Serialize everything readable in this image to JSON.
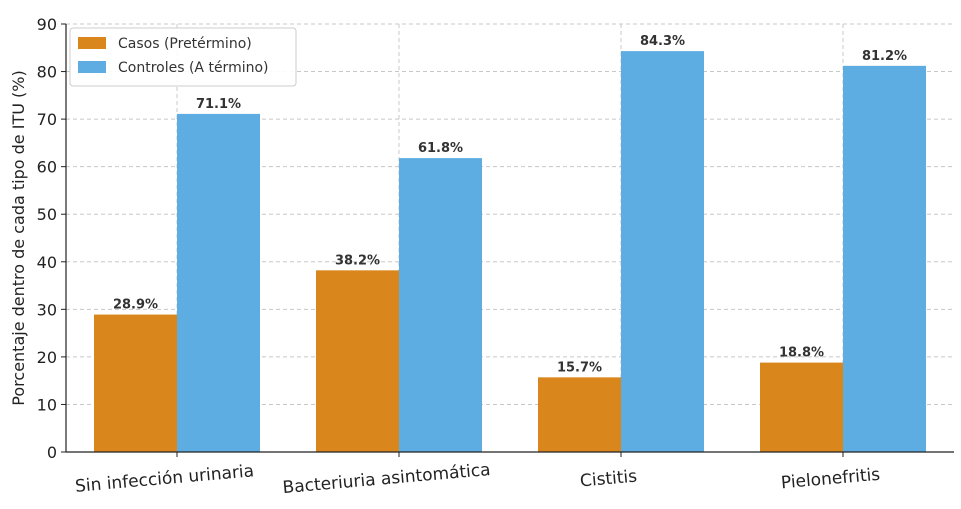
{
  "chart_data": {
    "type": "bar",
    "title": "",
    "xlabel": "",
    "ylabel": "Porcentaje dentro de cada tipo de ITU (%)",
    "ylim": [
      0,
      90
    ],
    "yticks": [
      0,
      10,
      20,
      30,
      40,
      50,
      60,
      70,
      80,
      90
    ],
    "grid": true,
    "legend_position": "top-left",
    "categories": [
      "Sin infección urinaria",
      "Bacteriuria asintomática",
      "Cistitis",
      "Pielonefritis"
    ],
    "series": [
      {
        "name": "Casos (Pretérmino)",
        "color": "#d9861c",
        "values": [
          28.9,
          38.2,
          15.7,
          18.8
        ],
        "labels": [
          "28.9%",
          "38.2%",
          "15.7%",
          "18.8%"
        ]
      },
      {
        "name": "Controles (A término)",
        "color": "#5dade2",
        "values": [
          71.1,
          61.8,
          84.3,
          81.2
        ],
        "labels": [
          "71.1%",
          "61.8%",
          "84.3%",
          "81.2%"
        ]
      }
    ]
  }
}
